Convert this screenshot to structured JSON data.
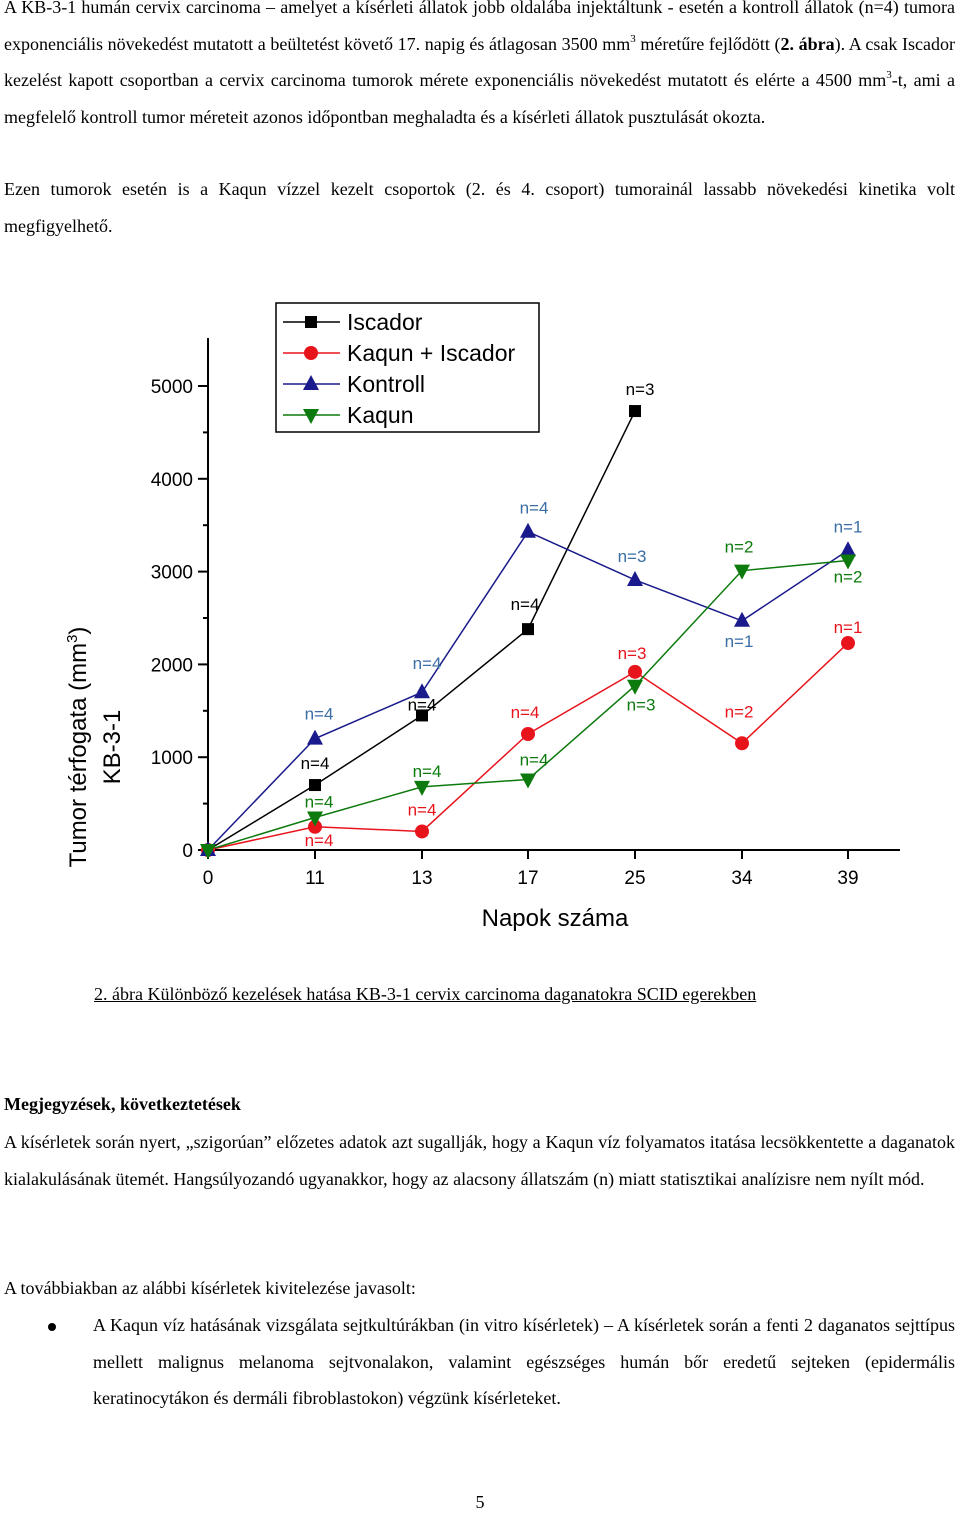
{
  "intro": {
    "p1_a": "A KB-3-1 humán cervix carcinoma – amelyet a kísérleti állatok jobb oldalába injektáltunk - esetén a kontroll állatok (n=4) tumora exponenciális növekedést mutatott a beültetést követő 17. napig és átlagosan 3500 mm",
    "p1_sup": "3",
    "p1_b": " méretűre fejlődött (",
    "p1_ref": "2. ábra",
    "p1_c": "). A csak Iscador kezelést kapott csoportban a cervix carcinoma tumorok mérete exponenciális növekedést mutatott és elérte a 4500 mm",
    "p1_sup2": "3",
    "p1_d": "-t, ami a megfelelő kontroll tumor méreteit azonos időpontban meghaladta és a kísérleti állatok pusztulását okozta.",
    "p2": "Ezen tumorok esetén is a Kaqun vízzel kezelt csoportok (2. és 4. csoport) tumorainál lassabb növekedési kinetika volt megfigyelhető."
  },
  "chart_data": {
    "type": "line",
    "xlabel": "Napok száma",
    "ylabel": "Tumor térfogata (mm3)",
    "ylabel_parts": {
      "main": "Tumor térfogata (mm",
      "sup": "3",
      "end": ")"
    },
    "ylabel2": "KB-3-1",
    "categories": [
      "0",
      "11",
      "13",
      "17",
      "25",
      "34",
      "39"
    ],
    "ylim": [
      0,
      5300
    ],
    "yticks": [
      "0",
      "1000",
      "2000",
      "3000",
      "4000",
      "5000"
    ],
    "legend_position": "top-left",
    "series": [
      {
        "name": "Iscador",
        "color": "#000000",
        "marker": "square",
        "values": [
          0,
          700,
          1450,
          2380,
          4730,
          null,
          null
        ],
        "labels": [
          "",
          "n=4",
          "n=4",
          "n=4",
          "n=3",
          "",
          ""
        ]
      },
      {
        "name": "Kaqun + Iscador",
        "color": "#e8141c",
        "marker": "circle",
        "values": [
          0,
          250,
          200,
          1250,
          1920,
          1150,
          2230
        ],
        "labels": [
          "",
          "n=4",
          "n=4",
          "n=4",
          "n=3",
          "n=2",
          "n=1"
        ]
      },
      {
        "name": "Kontroll",
        "color": "#1a1a8c",
        "marker": "triangle-up",
        "values": [
          0,
          1200,
          1700,
          3430,
          2910,
          2470,
          3230
        ],
        "labels": [
          "",
          "n=4",
          "n=4",
          "n=4",
          "n=3",
          "n=1",
          "n=1"
        ]
      },
      {
        "name": "Kaqun",
        "color": "#0d7a0d",
        "marker": "triangle-down",
        "values": [
          0,
          350,
          680,
          760,
          1770,
          3010,
          3120
        ],
        "labels": [
          "",
          "n=4",
          "n=4",
          "n=4",
          "n=3",
          "n=2",
          "n=2"
        ]
      }
    ],
    "label_colors": {
      "black": "#000000",
      "blue": "#3a6ea5",
      "green": "#0d7a0d",
      "red": "#e8141c"
    }
  },
  "figure": {
    "caption": "2. ábra Különböző kezelések hatása KB-3-1 cervix carcinoma daganatokra SCID egerekben"
  },
  "notes": {
    "heading": "Megjegyzések, következtetések",
    "p1": "A kísérletek során nyert, „szigorúan” előzetes adatok azt sugallják, hogy a Kaqun víz folyamatos itatása lecsökkentette a daganatok kialakulásának ütemét. Hangsúlyozandó ugyanakkor, hogy az alacsony állatszám (n) miatt statisztikai analízisre nem nyílt mód.",
    "p2": "A továbbiakban az alábbi kísérletek kivitelezése javasolt:",
    "bullet": "A Kaqun víz hatásának vizsgálata sejtkultúrákban (in vitro kísérletek) – A kísérletek során a fenti 2 daganatos sejttípus mellett malignus melanoma sejtvonalakon, valamint egészséges humán bőr eredetű sejteken (epidermális keratinocytákon és dermáli fibroblastokon) végzünk kísérleteket."
  },
  "page_number": "5"
}
